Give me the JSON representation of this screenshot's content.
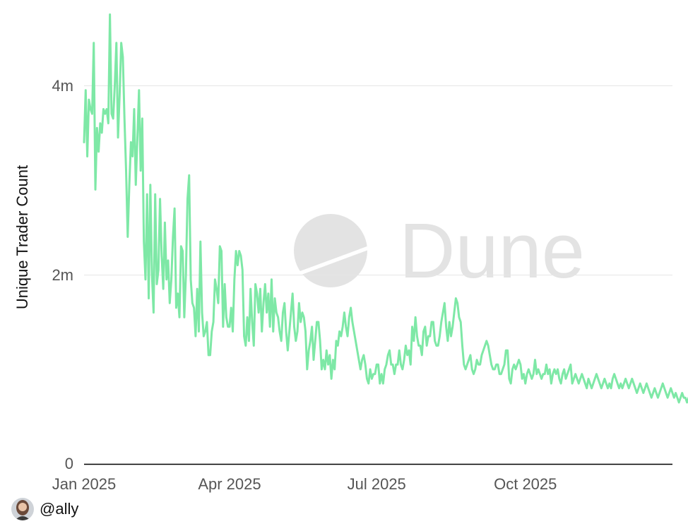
{
  "watermark": {
    "text": "Dune"
  },
  "author": {
    "handle": "@ally"
  },
  "colors": {
    "line": "#7ee8a6",
    "grid": "#e6e6e6",
    "axis": "#000000",
    "watermark": "#e3e3e3"
  },
  "chart_data": {
    "type": "line",
    "title": "",
    "xlabel": "",
    "ylabel": "Unique Trader Count",
    "x_range": [
      "2025-01-01",
      "2025-12-31"
    ],
    "ylim": [
      0,
      4000000
    ],
    "y_ticks": [
      {
        "value": 0,
        "label": "0"
      },
      {
        "value": 2000000,
        "label": "2m"
      },
      {
        "value": 4000000,
        "label": "4m"
      }
    ],
    "x_ticks": [
      {
        "date": "2025-01-01",
        "label": "Jan 2025"
      },
      {
        "date": "2025-04-01",
        "label": "Apr 2025"
      },
      {
        "date": "2025-07-01",
        "label": "Jul 2025"
      },
      {
        "date": "2025-10-01",
        "label": "Oct 2025"
      }
    ],
    "grid": true,
    "legend": "none",
    "series": [
      {
        "frequency": "daily",
        "start_date": "2025-01-01",
        "values": [
          3400000,
          3950000,
          3250000,
          3850000,
          3750000,
          3700000,
          4450000,
          2900000,
          3550000,
          3300000,
          3600000,
          3500000,
          3750000,
          3700000,
          3750000,
          3600000,
          4750000,
          3700000,
          3650000,
          4000000,
          4450000,
          3450000,
          3900000,
          4450000,
          4300000,
          3650000,
          3100000,
          2400000,
          2950000,
          3400000,
          3250000,
          3750000,
          2950000,
          3450000,
          3950000,
          3100000,
          3650000,
          2350000,
          1950000,
          2850000,
          1750000,
          2950000,
          2000000,
          1600000,
          2850000,
          1900000,
          2050000,
          2800000,
          2200000,
          1850000,
          2550000,
          1950000,
          2150000,
          1700000,
          1950000,
          2400000,
          2700000,
          1650000,
          1800000,
          1550000,
          2300000,
          2250000,
          1550000,
          2000000,
          2800000,
          3050000,
          1950000,
          1700000,
          1650000,
          1350000,
          1850000,
          1400000,
          2350000,
          1600000,
          1350000,
          1400000,
          1500000,
          1150000,
          1150000,
          1400000,
          1500000,
          1950000,
          1850000,
          1700000,
          2300000,
          2250000,
          1450000,
          1900000,
          1550000,
          1450000,
          1450000,
          1650000,
          1400000,
          1950000,
          2250000,
          2100000,
          2250000,
          2200000,
          2050000,
          1350000,
          1250000,
          1550000,
          1300000,
          1850000,
          1500000,
          1250000,
          1900000,
          1800000,
          1600000,
          1850000,
          1400000,
          1700000,
          1900000,
          1600000,
          1800000,
          1450000,
          1950000,
          1400000,
          1750000,
          1600000,
          1550000,
          1400000,
          1300000,
          1600000,
          1700000,
          1400000,
          1200000,
          1400000,
          1600000,
          1800000,
          1450000,
          1300000,
          1400000,
          1700000,
          1500000,
          1600000,
          1550000,
          1400000,
          1000000,
          1200000,
          1300000,
          1450000,
          1100000,
          1300000,
          1500000,
          1500000,
          1300000,
          1000000,
          1100000,
          1000000,
          1200000,
          1050000,
          1150000,
          900000,
          1100000,
          1000000,
          1300000,
          1250000,
          1400000,
          1350000,
          1450000,
          1600000,
          1450000,
          1350000,
          1550000,
          1650000,
          1500000,
          1400000,
          1300000,
          1200000,
          1100000,
          1000000,
          1100000,
          1150000,
          1050000,
          900000,
          850000,
          1000000,
          900000,
          950000,
          950000,
          1050000,
          1050000,
          850000,
          950000,
          850000,
          1000000,
          1050000,
          1150000,
          1200000,
          1050000,
          1050000,
          950000,
          1050000,
          1050000,
          1200000,
          1050000,
          1000000,
          1100000,
          1250000,
          1150000,
          1200000,
          1050000,
          1450000,
          1300000,
          1550000,
          1350000,
          1250000,
          1250000,
          1150000,
          1400000,
          1450000,
          1250000,
          1350000,
          1350000,
          1500000,
          1500000,
          1300000,
          1250000,
          1250000,
          1350000,
          1500000,
          1600000,
          1700000,
          1450000,
          1300000,
          1500000,
          1350000,
          1450000,
          1600000,
          1750000,
          1700000,
          1550000,
          1500000,
          1250000,
          1050000,
          1000000,
          1050000,
          1100000,
          1150000,
          1000000,
          950000,
          1000000,
          1100000,
          1050000,
          1050000,
          1150000,
          1200000,
          1250000,
          1300000,
          1250000,
          1150000,
          1050000,
          1000000,
          1000000,
          1050000,
          1050000,
          950000,
          950000,
          1000000,
          1050000,
          1200000,
          1200000,
          900000,
          850000,
          1000000,
          1050000,
          1000000,
          1050000,
          1100000,
          1050000,
          900000,
          950000,
          850000,
          950000,
          1000000,
          950000,
          900000,
          950000,
          1100000,
          950000,
          1000000,
          950000,
          900000,
          950000,
          950000,
          1050000,
          950000,
          1000000,
          850000,
          950000,
          1000000,
          950000,
          1000000,
          900000,
          850000,
          950000,
          1000000,
          900000,
          950000,
          1000000,
          1050000,
          850000,
          900000,
          950000,
          900000,
          850000,
          900000,
          950000,
          900000,
          850000,
          800000,
          900000,
          850000,
          800000,
          850000,
          900000,
          950000,
          900000,
          850000,
          800000,
          850000,
          900000,
          850000,
          800000,
          850000,
          800000,
          900000,
          950000,
          900000,
          850000,
          800000,
          850000,
          800000,
          850000,
          900000,
          850000,
          800000,
          850000,
          900000,
          850000,
          800000,
          750000,
          800000,
          850000,
          800000,
          750000,
          800000,
          850000,
          800000,
          750000,
          700000,
          750000,
          800000,
          750000,
          700000,
          750000,
          800000,
          850000,
          800000,
          750000,
          700000,
          750000,
          800000,
          750000,
          700000,
          750000,
          700000,
          650000,
          700000,
          750000,
          700000,
          700000,
          650000,
          700000,
          650000,
          700000,
          650000,
          600000,
          650000,
          550000
        ]
      }
    ]
  }
}
